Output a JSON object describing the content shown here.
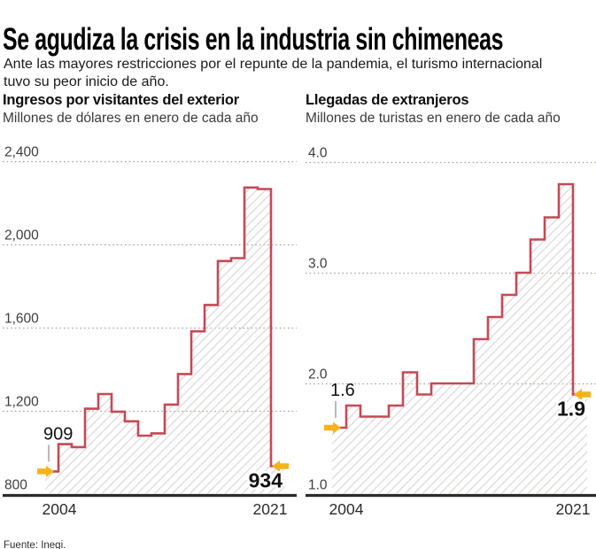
{
  "header": {
    "title": "Se agudiza la crisis en la industria sin chimeneas",
    "subtitle": "Ante las mayores restricciones por el repunte de la pandemia, el turismo internacional tuvo su peor inicio de año."
  },
  "source": "Fuente: Inegi.",
  "colors": {
    "line": "#c44a55",
    "marker": "#f3b41b",
    "hatch": "#d9d5d3",
    "grid": "#a8a29c",
    "baseline": "#2d2b2a",
    "annotation_text": "#111111"
  },
  "chart_data": [
    {
      "type": "step-area",
      "title": "Ingresos por visitantes del exterior",
      "subtitle": "Millones de dólares en enero de cada año",
      "xlabel": "",
      "ylabel": "Millones de dólares",
      "grid": "horizontal-dotted",
      "x": [
        2004,
        2005,
        2006,
        2007,
        2008,
        2009,
        2010,
        2011,
        2012,
        2013,
        2014,
        2015,
        2016,
        2017,
        2018,
        2019,
        2020,
        2021
      ],
      "values": [
        909,
        1040,
        1026,
        1210,
        1281,
        1196,
        1150,
        1081,
        1092,
        1230,
        1377,
        1582,
        1709,
        1920,
        1934,
        2273,
        2266,
        934
      ],
      "ylim": [
        800,
        2400
      ],
      "ytick_values": [
        2400,
        2000,
        1600,
        1200,
        800
      ],
      "ytick_labels": [
        "2,400",
        "2,000",
        "1,600",
        "1,200",
        "800"
      ],
      "xtick_labels": [
        "2004",
        "2021"
      ],
      "annotations": {
        "start": {
          "label": "909",
          "value": 909
        },
        "end": {
          "label": "934",
          "value": 934
        }
      }
    },
    {
      "type": "step-area",
      "title": "Llegadas de extranjeros",
      "subtitle": "Millones de turistas en enero de cada año",
      "xlabel": "",
      "ylabel": "Millones de turistas",
      "grid": "horizontal-dotted",
      "x": [
        2004,
        2005,
        2006,
        2007,
        2008,
        2009,
        2010,
        2011,
        2012,
        2013,
        2014,
        2015,
        2016,
        2017,
        2018,
        2019,
        2020,
        2021
      ],
      "values": [
        1.6,
        1.8,
        1.7,
        1.7,
        1.8,
        2.1,
        1.9,
        2.0,
        2.0,
        2.0,
        2.4,
        2.6,
        2.8,
        3.0,
        3.3,
        3.5,
        3.8,
        1.9
      ],
      "ylim": [
        1.0,
        4.0
      ],
      "ytick_values": [
        4.0,
        3.0,
        2.0,
        1.0
      ],
      "ytick_labels": [
        "4.0",
        "3.0",
        "2.0",
        "1.0"
      ],
      "xtick_labels": [
        "2004",
        "2021"
      ],
      "annotations": {
        "start": {
          "label": "1.6",
          "value": 1.6
        },
        "end": {
          "label": "1.9",
          "value": 1.9
        }
      }
    }
  ]
}
